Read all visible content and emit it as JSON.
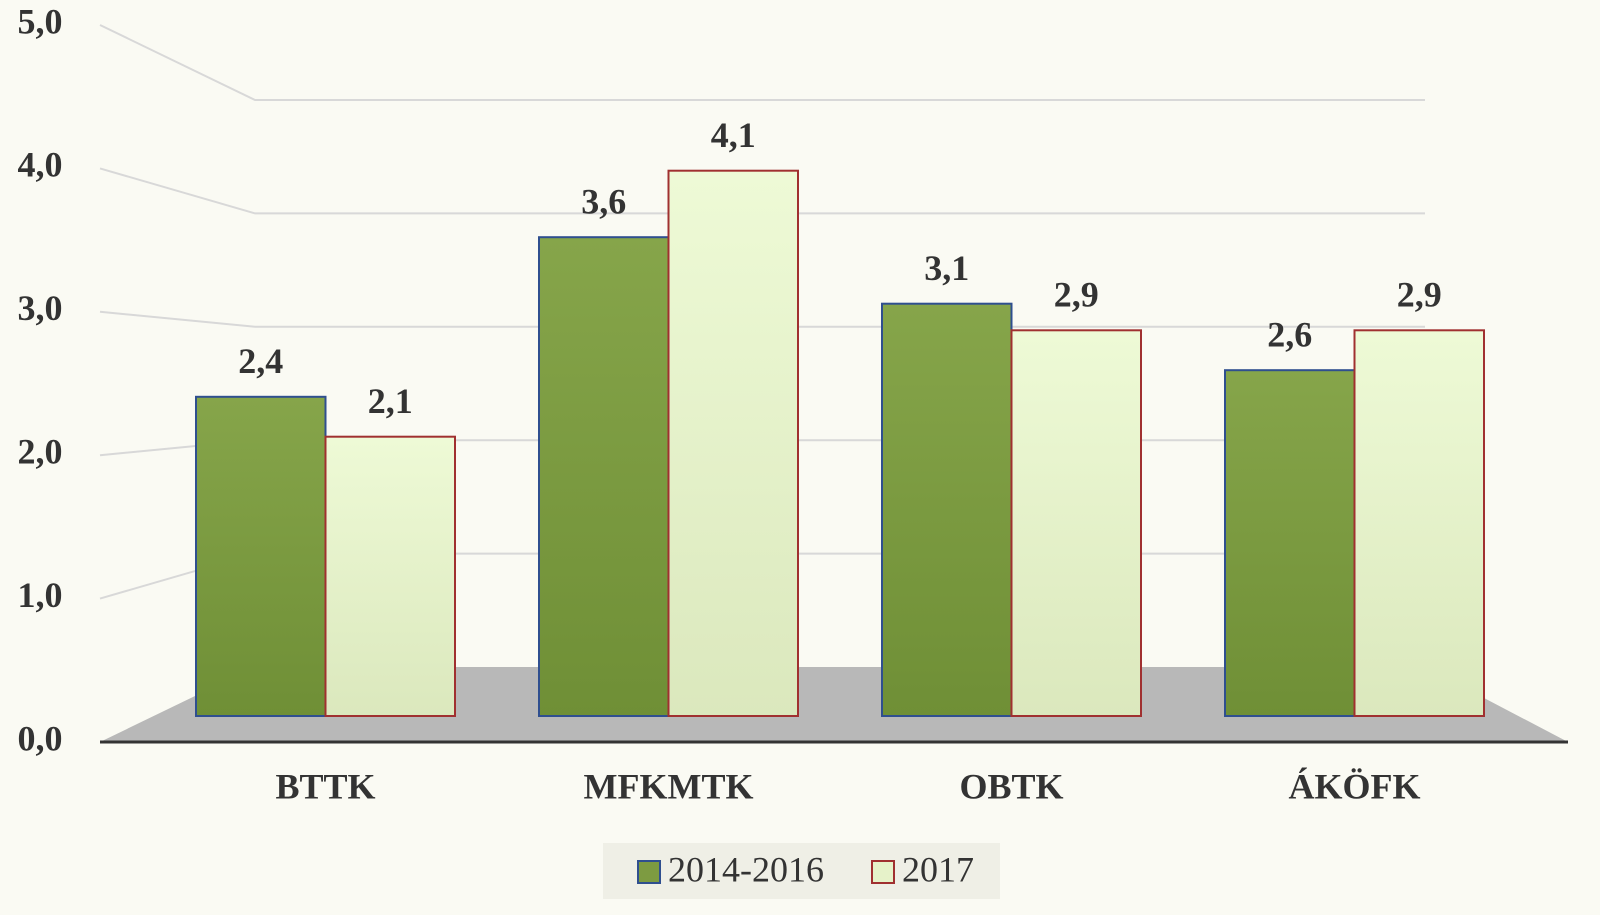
{
  "chart_data": {
    "type": "bar",
    "categories": [
      "BTTK",
      "MFKMTK",
      "OBTK",
      "ÁKÖFK"
    ],
    "series": [
      {
        "name": "2014-2016",
        "color": "#7d9b41",
        "values": [
          2.4,
          3.6,
          3.1,
          2.6
        ],
        "value_labels": [
          "2,4",
          "3,6",
          "3,1",
          "2,6"
        ]
      },
      {
        "name": "2017",
        "color": "#e6f2c9",
        "values": [
          2.1,
          4.1,
          2.9,
          2.9
        ],
        "value_labels": [
          "2,1",
          "4,1",
          "2,9",
          "2,9"
        ]
      }
    ],
    "ylim": [
      0,
      5
    ],
    "yticks": [
      {
        "value": 0,
        "label": "0,0"
      },
      {
        "value": 1,
        "label": "1,0"
      },
      {
        "value": 2,
        "label": "2,0"
      },
      {
        "value": 3,
        "label": "3,0"
      },
      {
        "value": 4,
        "label": "4,0"
      },
      {
        "value": 5,
        "label": "5,0"
      }
    ],
    "grid": true,
    "legend": "bottom"
  }
}
